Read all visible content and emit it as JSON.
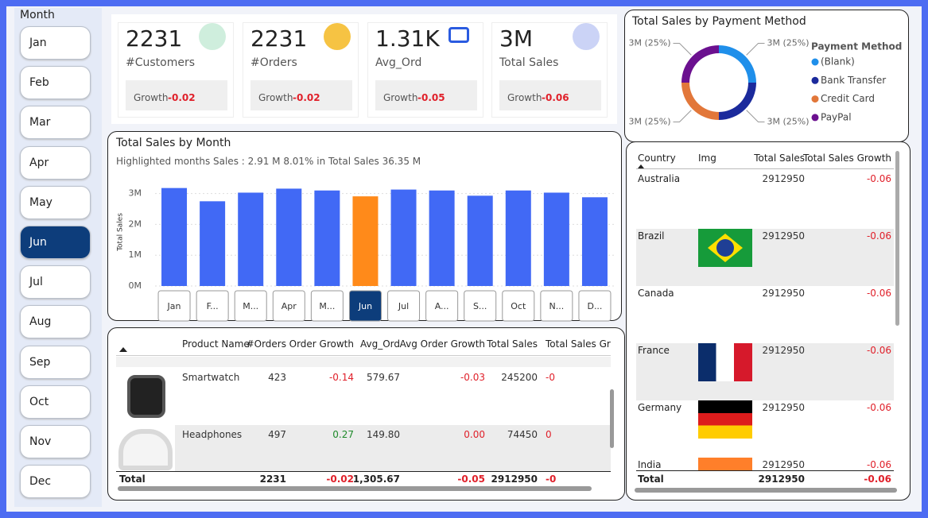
{
  "slicer": {
    "title": "Month",
    "items": [
      "Jan",
      "Feb",
      "Mar",
      "Apr",
      "May",
      "Jun",
      "Jul",
      "Aug",
      "Sep",
      "Oct",
      "Nov",
      "Dec"
    ],
    "selected": "Jun"
  },
  "kpis": [
    {
      "value": "2231",
      "label": "#Customers",
      "growth_label": "Growth",
      "growth": -0.02
    },
    {
      "value": "2231",
      "label": "#Orders",
      "growth_label": "Growth",
      "growth": -0.02
    },
    {
      "value": "1.31K",
      "label": "Avg_Ord",
      "growth_label": "Growth",
      "growth": -0.05
    },
    {
      "value": "3M",
      "label": "Total Sales",
      "growth_label": "Growth",
      "growth": -0.06
    }
  ],
  "payment_chart": {
    "type": "pie",
    "title": "Total Sales by Payment Method",
    "legend_title": "Payment Method",
    "categories": [
      "(Blank)",
      "Bank Transfer",
      "Credit Card",
      "PayPal"
    ],
    "values": [
      25,
      25,
      25,
      25
    ],
    "value_labels": [
      "3M (25%)",
      "3M (25%)",
      "3M (25%)",
      "3M (25%)"
    ],
    "colors": [
      "#1f8fea",
      "#1b2a9c",
      "#e2773a",
      "#6b108f"
    ]
  },
  "month_chart": {
    "type": "bar",
    "title": "Total Sales by Month",
    "subtitle": "Highlighted months Sales : 2.91 M  8.01% in Total Sales  36.35 M",
    "y_label": "Total Sales",
    "categories": [
      "Jan",
      "F...",
      "M...",
      "Apr",
      "M...",
      "Jun",
      "Jul",
      "A...",
      "S...",
      "Oct",
      "N...",
      "D..."
    ],
    "values": [
      3.18,
      2.75,
      3.03,
      3.16,
      3.1,
      2.91,
      3.13,
      3.1,
      2.93,
      3.1,
      3.03,
      2.88
    ],
    "colors": [
      "#4169f5",
      "#4169f5",
      "#4169f5",
      "#4169f5",
      "#4169f5",
      "#ff8a1a",
      "#4169f5",
      "#4169f5",
      "#4169f5",
      "#4169f5",
      "#4169f5",
      "#4169f5"
    ],
    "ylim": [
      0,
      3.3
    ],
    "yticks": [
      {
        "value": 0,
        "label": "0M"
      },
      {
        "value": 1,
        "label": "1M"
      },
      {
        "value": 2,
        "label": "2M"
      },
      {
        "value": 3,
        "label": "3M"
      }
    ],
    "grid": true
  },
  "product_table": {
    "headers": [
      "Product Name",
      "#Orders",
      "Order Growth",
      "Avg_Ord",
      "Avg Order Growth",
      "Total Sales",
      "Total Sales Growth"
    ],
    "rows": [
      [
        "Smartwatch",
        "423",
        "-0.14",
        "579.67",
        "-0.03",
        "245200",
        "-0"
      ],
      [
        "Headphones",
        "497",
        "0.27",
        "149.80",
        "0.00",
        "74450",
        "0"
      ]
    ],
    "total": [
      "Total",
      "2231",
      "-0.02",
      "1,305.67",
      "-0.05",
      "2912950",
      "-0"
    ]
  },
  "country_table": {
    "headers": [
      "Country",
      "Img",
      "Total Sales",
      "Total Sales Growth"
    ],
    "rows": [
      [
        "Australia",
        "2912950",
        "-0.06"
      ],
      [
        "Brazil",
        "2912950",
        "-0.06"
      ],
      [
        "Canada",
        "2912950",
        "-0.06"
      ],
      [
        "France",
        "2912950",
        "-0.06"
      ],
      [
        "Germany",
        "2912950",
        "-0.06"
      ],
      [
        "India",
        "2912950",
        "-0.06"
      ]
    ],
    "total": [
      "Total",
      "2912950",
      "-0.06"
    ]
  }
}
